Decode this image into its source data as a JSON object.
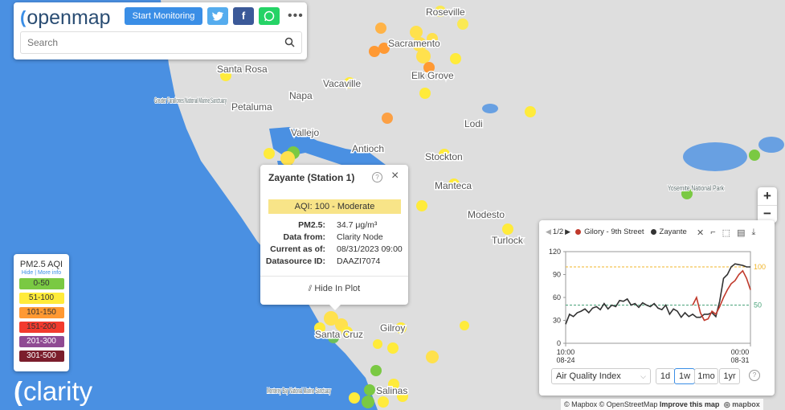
{
  "header": {
    "logo_text": "openmap",
    "start_label": "Start Monitoring",
    "search_placeholder": "Search",
    "colors": {
      "primary": "#3a8ee6",
      "twitter": "#55acee",
      "facebook": "#3b5998",
      "whatsapp": "#25d366"
    }
  },
  "map": {
    "water_color": "#4a90e2",
    "land_color": "#dcdcdc",
    "labels": [
      {
        "text": "Roseville",
        "kind": "city"
      },
      {
        "text": "Sacramento",
        "kind": "city"
      },
      {
        "text": "Santa Rosa",
        "kind": "city"
      },
      {
        "text": "Vacaville",
        "kind": "city"
      },
      {
        "text": "Elk Grove",
        "kind": "city"
      },
      {
        "text": "Petaluma",
        "kind": "city"
      },
      {
        "text": "Napa",
        "kind": "city"
      },
      {
        "text": "Vallejo",
        "kind": "city"
      },
      {
        "text": "Antioch",
        "kind": "city"
      },
      {
        "text": "Lodi",
        "kind": "city"
      },
      {
        "text": "Stockton",
        "kind": "city"
      },
      {
        "text": "Manteca",
        "kind": "city"
      },
      {
        "text": "Modesto",
        "kind": "city"
      },
      {
        "text": "Turlock",
        "kind": "city"
      },
      {
        "text": "Gilroy",
        "kind": "city"
      },
      {
        "text": "Santa Cruz",
        "kind": "city"
      },
      {
        "text": "Salinas",
        "kind": "city"
      },
      {
        "text": "Greater Farallones National Marine Sanctuary",
        "kind": "park"
      },
      {
        "text": "Yosemite National Park",
        "kind": "park"
      },
      {
        "text": "Monterey Bay National Marine Sanctuary",
        "kind": "park"
      }
    ],
    "attribution": {
      "mapbox": "© Mapbox",
      "osm": "© OpenStreetMap",
      "improve": "Improve this map",
      "brand": "mapbox"
    }
  },
  "zoom": {
    "in": "+",
    "out": "−"
  },
  "legend": {
    "title": "PM2.5 AQI",
    "hide": "Hide",
    "more": "More info",
    "bins": [
      {
        "label": "0-50",
        "color": "#7ac943"
      },
      {
        "label": "51-100",
        "color": "#ffeb3b"
      },
      {
        "label": "101-150",
        "color": "#ff9933"
      },
      {
        "label": "151-200",
        "color": "#f23b2e"
      },
      {
        "label": "201-300",
        "color": "#8f4a93"
      },
      {
        "label": "301-500",
        "color": "#7b1e2c"
      }
    ]
  },
  "brand": {
    "name": "clarity"
  },
  "popup": {
    "title": "Zayante (Station 1)",
    "aqi_label": "AQI: 100 - Moderate",
    "aqi_color": "#f8e488",
    "fields": [
      {
        "label": "PM2.5:",
        "value": "34.7 μg/m³"
      },
      {
        "label": "Data from:",
        "value": "Clarity Node"
      },
      {
        "label": "Current as of:",
        "value": "08/31/2023 09:00"
      },
      {
        "label": "Datasource ID:",
        "value": "DAAZI7074"
      }
    ],
    "hide_label": "Hide In Plot"
  },
  "plot": {
    "pager": "1/2",
    "series_names": [
      "Gilory - 9th Street",
      "Zayante"
    ],
    "dropdown_value": "Air Quality Index",
    "ranges": [
      "1d",
      "1w",
      "1mo",
      "1yr"
    ],
    "active_range": "1w",
    "help": "?"
  },
  "chart_data": {
    "type": "line",
    "x_start_label": "10:00",
    "x_start_date": "08-24",
    "x_end_label": "00:00",
    "x_end_date": "08-31",
    "ylim": [
      0,
      120
    ],
    "yticks": [
      0,
      30,
      60,
      90,
      120
    ],
    "reference_lines": [
      {
        "value": 100,
        "label": "100",
        "color": "#f0b429"
      },
      {
        "value": 50,
        "label": "50",
        "color": "#4aa37a"
      }
    ],
    "series": [
      {
        "name": "Zayante",
        "color": "#333333",
        "values": [
          25,
          38,
          35,
          40,
          42,
          45,
          40,
          46,
          48,
          44,
          52,
          45,
          50,
          48,
          56,
          55,
          58,
          50,
          52,
          47,
          53,
          50,
          48,
          52,
          46,
          44,
          50,
          38,
          45,
          42,
          34,
          40,
          35,
          38,
          34,
          34,
          38,
          38,
          40,
          35,
          55,
          85,
          90,
          100,
          104,
          103,
          102,
          100,
          100
        ]
      },
      {
        "name": "Gilory - 9th Street",
        "color": "#c0392b",
        "values": [
          null,
          null,
          null,
          null,
          null,
          null,
          null,
          null,
          null,
          null,
          null,
          null,
          null,
          null,
          null,
          null,
          null,
          null,
          null,
          null,
          null,
          null,
          null,
          null,
          null,
          null,
          null,
          null,
          null,
          null,
          null,
          null,
          null,
          50,
          60,
          40,
          30,
          32,
          42,
          38,
          48,
          60,
          70,
          78,
          82,
          90,
          95,
          85,
          70
        ]
      }
    ]
  }
}
